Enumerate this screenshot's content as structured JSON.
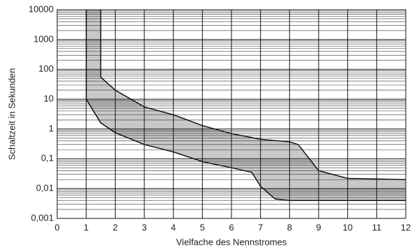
{
  "chart_data": {
    "type": "band",
    "x_label": "Vielfache des Nennstromes",
    "y_label": "Schaltzeit in Sekunden",
    "xlim": [
      0,
      12
    ],
    "xticks": [
      0,
      1,
      2,
      3,
      4,
      5,
      6,
      7,
      8,
      9,
      10,
      11,
      12
    ],
    "ylim": [
      0.001,
      10000
    ],
    "log_y": true,
    "grid": true,
    "minor_grid": true,
    "yticks": [
      {
        "value": 0.001,
        "label": "0,001"
      },
      {
        "value": 0.01,
        "label": "0,01"
      },
      {
        "value": 0.1,
        "label": "0,1"
      },
      1,
      10,
      100,
      1000,
      10000
    ],
    "fill": "#c8c8c8",
    "color": "#111111",
    "series": [
      {
        "x": [
          1.5,
          1.5,
          2,
          3,
          4,
          5,
          6,
          7,
          8,
          8.3,
          9,
          10,
          12
        ],
        "values": [
          10000,
          55,
          20,
          5.5,
          3,
          1.3,
          0.7,
          0.45,
          0.37,
          0.3,
          0.04,
          0.022,
          0.02
        ]
      },
      {
        "x": [
          1,
          1,
          1.5,
          2,
          3,
          4,
          5,
          6,
          6.7,
          7,
          7.5,
          8,
          12
        ],
        "values": [
          10000,
          10,
          1.6,
          0.75,
          0.3,
          0.17,
          0.08,
          0.05,
          0.035,
          0.012,
          0.0045,
          0.004,
          0.004
        ]
      }
    ]
  }
}
